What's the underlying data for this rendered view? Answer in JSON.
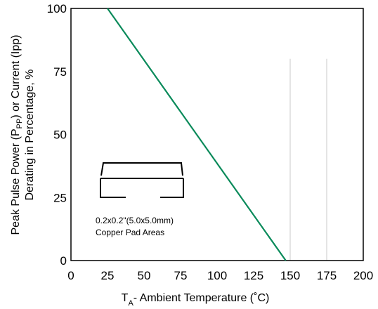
{
  "chart_data": {
    "type": "line",
    "xlabel": {
      "prefix": "T",
      "sub": "A",
      "rest": "- Ambient Temperature (˚C)"
    },
    "ylabel": {
      "line1_pre": "Peak Pulse Power (P",
      "line1_sub": "PP",
      "line1_post": ") or Current (Ipp)",
      "line2": "Derating in Percentage, %"
    },
    "xlim": [
      0,
      200
    ],
    "ylim": [
      0,
      100
    ],
    "x_ticks": [
      "0",
      "25",
      "50",
      "75",
      "100",
      "125",
      "150",
      "175",
      "200"
    ],
    "y_ticks": [
      "0",
      "25",
      "50",
      "75",
      "100"
    ],
    "series": [
      {
        "color": "#0a8a5a",
        "points": [
          [
            25,
            100
          ],
          [
            147,
            0
          ]
        ]
      }
    ],
    "annotation": {
      "line1": "0.2x0.2\"(5.0x5.0mm)",
      "line2": "Copper Pad Areas"
    },
    "grid_color": "#c8c8c8"
  }
}
